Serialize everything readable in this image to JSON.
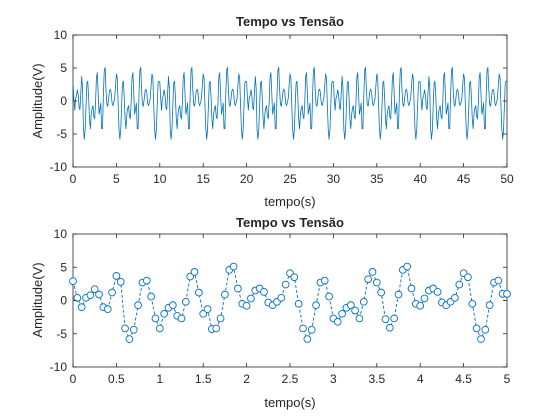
{
  "colors": {
    "series": "#0072bd",
    "axes": "#262626",
    "background": "#ffffff",
    "figure_background": "#ffffff"
  },
  "chart_data": [
    {
      "type": "line",
      "title": "Tempo vs Tensão",
      "xlabel": "tempo(s)",
      "ylabel": "Amplitude(V)",
      "xlim": [
        0,
        50
      ],
      "ylim": [
        -10,
        10
      ],
      "x_ticks": [
        "0",
        "5",
        "10",
        "15",
        "20",
        "25",
        "30",
        "35",
        "40",
        "45",
        "50"
      ],
      "y_ticks": [
        "10",
        "5",
        "0",
        "-5",
        "-10"
      ],
      "grid": false,
      "legend": "none",
      "series": [
        {
          "x_start": 0,
          "x_step": 0.1,
          "values": [
            2.9,
            0.4,
            -1.4,
            0.4,
            0.8,
            1.7,
            0.9,
            -1.0,
            -1.3,
            1.2,
            3.7,
            2.0,
            -4.2,
            -5.8,
            -4.4,
            -0.7,
            2.7,
            3.0,
            0.6,
            -2.7,
            -4.2,
            -2.0,
            -1.1,
            -0.7,
            -2.3,
            -2.7,
            -0.2,
            3.6,
            4.3,
            1.2,
            -2.0,
            -1.3,
            -0.3,
            -4.2,
            -4.2,
            0.9,
            4.6,
            5.1,
            1.8,
            -0.5,
            -0.8,
            0.3,
            1.5,
            1.8,
            1.3,
            -0.3,
            -0.7,
            -0.2,
            0.4,
            2.4,
            4.1,
            3.5,
            -0.5,
            -4.2,
            -5.8,
            -4.4,
            -0.7,
            2.7,
            3.0,
            0.6,
            -2.7,
            -4.2,
            -2.0,
            -1.1,
            -0.7,
            -2.3,
            -2.7,
            -0.2,
            3.6,
            4.3,
            1.2,
            -2.0,
            -1.3,
            -0.3,
            -4.2,
            -4.2,
            0.9,
            4.6,
            5.1,
            1.8,
            -0.5,
            -0.8,
            0.3,
            1.5,
            1.8,
            1.3,
            -0.3,
            -0.7,
            -0.2,
            0.4,
            2.4,
            4.1,
            3.5,
            -0.5,
            -4.2,
            -5.8,
            -4.4,
            -0.7,
            2.7,
            3.0
          ],
          "pattern": "repeat"
        }
      ]
    },
    {
      "type": "line",
      "title": "Tempo vs Tensão",
      "xlabel": "tempo(s)",
      "ylabel": "Amplitude(V)",
      "xlim": [
        0,
        5
      ],
      "ylim": [
        -10,
        10
      ],
      "x_ticks": [
        "0",
        "0.5",
        "1",
        "1.5",
        "2",
        "2.5",
        "3",
        "3.5",
        "4",
        "4.5",
        "5"
      ],
      "y_ticks": [
        "10",
        "5",
        "0",
        "-5",
        "-10"
      ],
      "grid": false,
      "legend": "none",
      "line_style": "dashed",
      "marker": "open-circle",
      "series": [
        {
          "x_start": 0,
          "x_step": 0.05,
          "values": [
            2.9,
            0.4,
            -1.0,
            0.4,
            0.8,
            1.7,
            0.9,
            -1.0,
            -1.3,
            1.2,
            3.7,
            2.8,
            -4.2,
            -5.8,
            -4.4,
            -0.7,
            2.7,
            3.0,
            0.6,
            -2.7,
            -4.2,
            -2.0,
            -1.1,
            -0.7,
            -2.3,
            -2.7,
            -0.2,
            3.6,
            4.3,
            1.2,
            -2.0,
            -1.3,
            -4.3,
            -4.2,
            -2.7,
            0.9,
            4.6,
            5.1,
            1.8,
            -0.5,
            -0.8,
            0.3,
            1.5,
            1.8,
            1.3,
            -0.3,
            -0.7,
            -0.2,
            0.4,
            2.4,
            4.1,
            3.5,
            -0.5,
            -4.2,
            -5.8,
            -4.4,
            -0.7,
            2.7,
            3.0,
            0.6,
            -2.7,
            -3.2,
            -2.0,
            -1.1,
            -0.7,
            -1.5,
            -2.7,
            -0.2,
            3.2,
            4.3,
            2.7,
            1.2,
            -2.8,
            -4.1,
            -2.7,
            0.9,
            4.6,
            5.1,
            1.8,
            -0.5,
            -0.8,
            0.3,
            1.5,
            1.8,
            1.3,
            -0.3,
            -0.7,
            -0.2,
            0.4,
            2.4,
            4.1,
            3.5,
            -0.5,
            -4.2,
            -5.8,
            -4.4,
            -0.7,
            2.7,
            3.0,
            1.0,
            1.0
          ]
        }
      ]
    }
  ]
}
